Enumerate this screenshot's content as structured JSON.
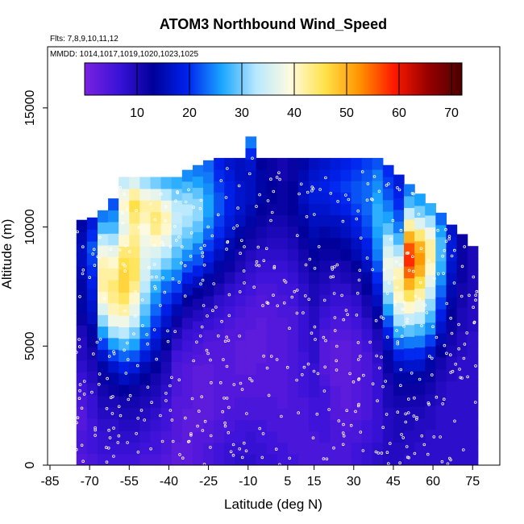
{
  "chart_data": {
    "type": "heatmap",
    "title": "ATOM3 Northbound Wind_Speed",
    "flights_label": "Flts: 7,8,9,10,11,12",
    "dates_label": "MMDD: 1014,1017,1019,1020,1023,1025",
    "xlabel": "Latitude (deg N)",
    "ylabel": "Altitude (m)",
    "xlim": [
      -85,
      85
    ],
    "ylim": [
      0,
      17500
    ],
    "x_ticks": [
      -85,
      -70,
      -55,
      -40,
      -25,
      -10,
      5,
      15,
      30,
      45,
      60,
      75
    ],
    "y_ticks": [
      0,
      5000,
      10000,
      15000
    ],
    "colorbar": {
      "ticks": [
        10,
        20,
        30,
        40,
        50,
        60,
        70
      ],
      "range": [
        0,
        72
      ],
      "palette": [
        "#7b22e0",
        "#3a12d8",
        "#00009a",
        "#0022ee",
        "#1aa6ff",
        "#b8e8ff",
        "#fffbe0",
        "#ffe24a",
        "#ff9500",
        "#ff1a00",
        "#990000",
        "#4a0000"
      ]
    },
    "profiles": [
      {
        "lat": -73,
        "top": 10300,
        "values": [
          4,
          5,
          5,
          4,
          4,
          5,
          6,
          7,
          8,
          9,
          9,
          10,
          12,
          14,
          14,
          14,
          15,
          16,
          16,
          15,
          14
        ]
      },
      {
        "lat": -69,
        "top": 10400,
        "values": [
          5,
          6,
          6,
          6,
          7,
          7,
          8,
          9,
          10,
          11,
          12,
          14,
          16,
          17,
          18,
          19,
          20,
          21,
          22,
          20,
          18
        ]
      },
      {
        "lat": -65,
        "top": 10700,
        "values": [
          6,
          7,
          7,
          8,
          9,
          10,
          11,
          12,
          14,
          17,
          21,
          26,
          31,
          36,
          40,
          42,
          42,
          41,
          38,
          33,
          28,
          24
        ]
      },
      {
        "lat": -61,
        "top": 11200,
        "values": [
          6,
          7,
          8,
          8,
          9,
          10,
          12,
          14,
          17,
          21,
          26,
          32,
          38,
          41,
          43,
          44,
          42,
          40,
          37,
          32,
          28,
          25,
          22
        ]
      },
      {
        "lat": -57,
        "top": 12100,
        "values": [
          6,
          7,
          8,
          9,
          10,
          11,
          13,
          16,
          19,
          23,
          28,
          33,
          38,
          42,
          45,
          47,
          47,
          46,
          44,
          40,
          37,
          38,
          40,
          38,
          34
        ]
      },
      {
        "lat": -53,
        "top": 12100,
        "values": [
          6,
          7,
          8,
          9,
          10,
          11,
          12,
          15,
          18,
          22,
          26,
          30,
          34,
          37,
          40,
          43,
          45,
          45,
          44,
          43,
          42,
          44,
          46,
          42,
          36
        ]
      },
      {
        "lat": -49,
        "top": 12100,
        "values": [
          5,
          6,
          7,
          8,
          9,
          10,
          11,
          13,
          15,
          18,
          21,
          24,
          27,
          29,
          31,
          33,
          35,
          36,
          37,
          38,
          39,
          41,
          42,
          38,
          32
        ]
      },
      {
        "lat": -45,
        "top": 12100,
        "values": [
          5,
          6,
          6,
          7,
          8,
          9,
          10,
          11,
          13,
          15,
          17,
          19,
          21,
          23,
          25,
          27,
          30,
          33,
          36,
          40,
          43,
          44,
          42,
          37,
          30
        ]
      },
      {
        "lat": -41,
        "top": 12100,
        "values": [
          4,
          5,
          5,
          6,
          6,
          7,
          8,
          9,
          10,
          11,
          13,
          15,
          17,
          19,
          21,
          23,
          26,
          30,
          33,
          37,
          40,
          41,
          38,
          33,
          28
        ]
      },
      {
        "lat": -37,
        "top": 12100,
        "values": [
          3,
          3,
          4,
          4,
          4,
          4,
          5,
          5,
          5,
          6,
          8,
          10,
          12,
          15,
          18,
          21,
          24,
          27,
          29,
          31,
          33,
          34,
          33,
          30,
          27
        ]
      },
      {
        "lat": -33,
        "top": 12400,
        "values": [
          3,
          3,
          3,
          3,
          3,
          4,
          4,
          4,
          4,
          5,
          6,
          7,
          9,
          11,
          13,
          16,
          19,
          22,
          25,
          28,
          30,
          32,
          33,
          31,
          28,
          25
        ]
      },
      {
        "lat": -29,
        "top": 12600,
        "values": [
          4,
          4,
          4,
          3,
          3,
          3,
          3,
          3,
          3,
          4,
          5,
          6,
          7,
          9,
          11,
          13,
          16,
          19,
          22,
          24,
          27,
          29,
          31,
          31,
          29,
          26,
          24
        ]
      },
      {
        "lat": -25,
        "top": 12800,
        "values": [
          5,
          5,
          4,
          4,
          3,
          3,
          3,
          3,
          3,
          4,
          4,
          5,
          7,
          8,
          10,
          12,
          14,
          17,
          19,
          21,
          23,
          25,
          26,
          26,
          25,
          24,
          23
        ]
      },
      {
        "lat": -21,
        "top": 12900,
        "values": [
          6,
          6,
          5,
          5,
          4,
          4,
          4,
          4,
          4,
          4,
          4,
          5,
          6,
          7,
          8,
          10,
          12,
          14,
          16,
          18,
          20,
          21,
          22,
          22,
          21,
          20,
          19
        ]
      },
      {
        "lat": -17,
        "top": 12900,
        "values": [
          7,
          7,
          6,
          5,
          5,
          4,
          4,
          4,
          4,
          4,
          4,
          4,
          5,
          6,
          7,
          8,
          10,
          12,
          14,
          15,
          17,
          18,
          19,
          19,
          19,
          18,
          17
        ]
      },
      {
        "lat": -13,
        "top": 12900,
        "values": [
          8,
          7,
          6,
          6,
          5,
          5,
          4,
          4,
          3,
          3,
          3,
          4,
          4,
          5,
          6,
          7,
          8,
          10,
          11,
          13,
          14,
          16,
          17,
          17,
          17,
          16,
          16
        ]
      },
      {
        "lat": -9,
        "top": 13800,
        "values": [
          8,
          7,
          7,
          6,
          5,
          5,
          4,
          4,
          3,
          3,
          3,
          3,
          4,
          4,
          5,
          6,
          7,
          8,
          9,
          11,
          12,
          14,
          15,
          16,
          16,
          16,
          17,
          20,
          24
        ]
      },
      {
        "lat": -5,
        "top": 12900,
        "values": [
          7,
          7,
          6,
          6,
          5,
          5,
          4,
          4,
          4,
          3,
          3,
          3,
          3,
          4,
          4,
          5,
          6,
          7,
          8,
          10,
          11,
          12,
          13,
          14,
          14,
          14,
          13
        ]
      },
      {
        "lat": -1,
        "top": 12900,
        "values": [
          7,
          6,
          6,
          5,
          5,
          5,
          4,
          4,
          4,
          4,
          4,
          4,
          4,
          4,
          5,
          5,
          6,
          7,
          8,
          9,
          10,
          11,
          12,
          13,
          13,
          12,
          12
        ]
      },
      {
        "lat": 3,
        "top": 12900,
        "values": [
          6,
          6,
          5,
          5,
          5,
          4,
          4,
          4,
          4,
          4,
          4,
          4,
          4,
          5,
          5,
          6,
          6,
          7,
          8,
          9,
          10,
          11,
          12,
          12,
          12,
          11,
          11
        ]
      },
      {
        "lat": 7,
        "top": 12900,
        "values": [
          6,
          5,
          5,
          5,
          5,
          5,
          5,
          5,
          5,
          5,
          5,
          5,
          5,
          5,
          6,
          6,
          7,
          8,
          9,
          10,
          11,
          12,
          13,
          13,
          13,
          12,
          12
        ]
      },
      {
        "lat": 11,
        "top": 12900,
        "values": [
          5,
          5,
          5,
          5,
          5,
          5,
          6,
          6,
          6,
          6,
          7,
          7,
          7,
          7,
          8,
          8,
          9,
          10,
          11,
          12,
          13,
          14,
          15,
          16,
          16,
          15,
          14
        ]
      },
      {
        "lat": 15,
        "top": 12900,
        "values": [
          5,
          5,
          5,
          6,
          6,
          6,
          7,
          7,
          7,
          8,
          8,
          8,
          9,
          9,
          10,
          10,
          11,
          12,
          13,
          14,
          15,
          16,
          17,
          18,
          18,
          17,
          16
        ]
      },
      {
        "lat": 19,
        "top": 12900,
        "values": [
          5,
          5,
          6,
          6,
          6,
          6,
          6,
          5,
          4,
          4,
          4,
          5,
          6,
          7,
          8,
          9,
          10,
          11,
          12,
          13,
          14,
          16,
          17,
          18,
          19,
          18,
          17
        ]
      },
      {
        "lat": 23,
        "top": 12900,
        "values": [
          5,
          5,
          5,
          5,
          4,
          4,
          4,
          3,
          3,
          3,
          3,
          4,
          5,
          6,
          7,
          8,
          9,
          10,
          12,
          13,
          15,
          16,
          18,
          19,
          20,
          19,
          18
        ]
      },
      {
        "lat": 27,
        "top": 12900,
        "values": [
          5,
          5,
          5,
          4,
          4,
          3,
          3,
          3,
          3,
          3,
          3,
          4,
          5,
          6,
          7,
          8,
          10,
          11,
          13,
          14,
          16,
          17,
          19,
          20,
          21,
          20,
          19
        ]
      },
      {
        "lat": 31,
        "top": 12900,
        "values": [
          6,
          6,
          5,
          5,
          4,
          4,
          4,
          4,
          4,
          4,
          4,
          5,
          6,
          7,
          8,
          10,
          11,
          13,
          15,
          16,
          18,
          19,
          21,
          22,
          22,
          21,
          20
        ]
      },
      {
        "lat": 35,
        "top": 12900,
        "values": [
          7,
          7,
          6,
          6,
          5,
          5,
          5,
          5,
          5,
          5,
          6,
          7,
          8,
          10,
          11,
          13,
          14,
          16,
          18,
          19,
          21,
          22,
          23,
          23,
          23,
          22,
          21
        ]
      },
      {
        "lat": 39,
        "top": 12900,
        "values": [
          8,
          8,
          7,
          7,
          7,
          7,
          7,
          7,
          7,
          8,
          9,
          10,
          12,
          14,
          16,
          18,
          20,
          22,
          24,
          25,
          26,
          27,
          27,
          26,
          25,
          24,
          22
        ]
      },
      {
        "lat": 43,
        "top": 12600,
        "values": [
          9,
          9,
          9,
          9,
          9,
          10,
          10,
          11,
          12,
          14,
          16,
          19,
          22,
          26,
          30,
          34,
          37,
          38,
          36,
          33,
          29,
          26,
          24,
          22,
          21,
          20
        ]
      },
      {
        "lat": 47,
        "top": 12200,
        "values": [
          9,
          9,
          10,
          10,
          10,
          11,
          12,
          14,
          16,
          19,
          23,
          27,
          32,
          36,
          40,
          42,
          41,
          37,
          32,
          28,
          24,
          22,
          20,
          19,
          18
        ]
      },
      {
        "lat": 51,
        "top": 11800,
        "values": [
          8,
          9,
          9,
          10,
          10,
          11,
          12,
          14,
          17,
          20,
          24,
          29,
          34,
          40,
          45,
          50,
          55,
          58,
          56,
          50,
          42,
          34,
          28,
          24
        ]
      },
      {
        "lat": 55,
        "top": 11400,
        "values": [
          8,
          8,
          9,
          9,
          10,
          11,
          12,
          14,
          17,
          20,
          24,
          28,
          33,
          38,
          42,
          46,
          50,
          52,
          50,
          44,
          36,
          30,
          26
        ]
      },
      {
        "lat": 59,
        "top": 11000,
        "values": [
          8,
          8,
          8,
          9,
          9,
          10,
          11,
          12,
          14,
          17,
          21,
          25,
          28,
          31,
          34,
          37,
          40,
          42,
          42,
          38,
          32,
          27
        ]
      },
      {
        "lat": 63,
        "top": 10600,
        "values": [
          8,
          8,
          8,
          8,
          8,
          9,
          9,
          10,
          11,
          13,
          15,
          17,
          19,
          21,
          23,
          25,
          27,
          28,
          28,
          26,
          23
        ]
      },
      {
        "lat": 67,
        "top": 10100,
        "values": [
          8,
          8,
          8,
          8,
          8,
          8,
          8,
          9,
          9,
          10,
          11,
          12,
          13,
          14,
          15,
          16,
          17,
          18,
          18,
          17
        ]
      },
      {
        "lat": 71,
        "top": 9700,
        "values": [
          8,
          8,
          8,
          8,
          8,
          8,
          8,
          8,
          8,
          9,
          9,
          10,
          10,
          11,
          11,
          12,
          12,
          12,
          12
        ]
      },
      {
        "lat": 75,
        "top": 9200,
        "values": [
          8,
          8,
          8,
          8,
          8,
          8,
          8,
          8,
          8,
          8,
          8,
          9,
          9,
          9,
          10,
          10,
          10,
          10
        ]
      }
    ]
  }
}
